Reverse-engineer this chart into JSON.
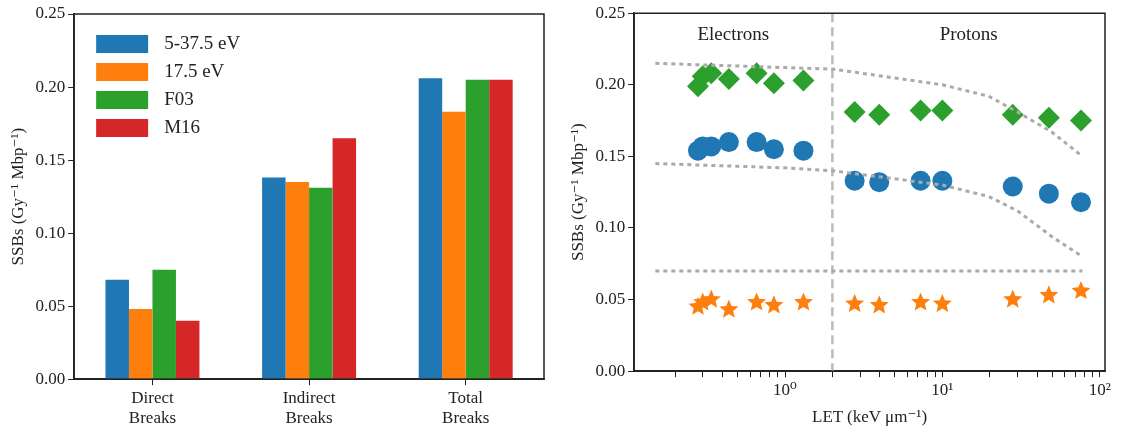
{
  "chart_data": [
    {
      "type": "bar",
      "ylabel": "SSBs (Gy⁻¹ Mbp⁻¹)",
      "categories": [
        "Direct Breaks",
        "Indirect Breaks",
        "Total Breaks"
      ],
      "series": [
        {
          "name": "5-37.5 eV",
          "color": "#1f77b4",
          "values": [
            0.068,
            0.138,
            0.206
          ]
        },
        {
          "name": "17.5 eV",
          "color": "#ff7f0e",
          "values": [
            0.048,
            0.135,
            0.183
          ]
        },
        {
          "name": "F03",
          "color": "#2ca02c",
          "values": [
            0.075,
            0.131,
            0.205
          ]
        },
        {
          "name": "M16",
          "color": "#d62728",
          "values": [
            0.04,
            0.165,
            0.205
          ]
        }
      ],
      "ylim": [
        0,
        0.25
      ],
      "yticks": [
        {
          "value": 0,
          "label": "0.00"
        },
        {
          "value": 0.05,
          "label": "0.05"
        },
        {
          "value": 0.1,
          "label": "0.10"
        },
        {
          "value": 0.15,
          "label": "0.15"
        },
        {
          "value": 0.2,
          "label": "0.20"
        },
        {
          "value": 0.25,
          "label": "0.25"
        }
      ],
      "grid": false,
      "legend": "top left"
    },
    {
      "type": "scatter",
      "xlabel": "LET (keV μm⁻¹)",
      "ylabel": "SSBs (Gy⁻¹ Mbp⁻¹)",
      "log": "x",
      "x": [
        0.28,
        0.3,
        0.34,
        0.44,
        0.66,
        0.85,
        1.31,
        2.77,
        3.97,
        7.27,
        10,
        28,
        47.5,
        76
      ],
      "series": [
        {
          "color": "#1f77b4",
          "marker": "circle",
          "values": [
            0.154,
            0.157,
            0.157,
            0.16,
            0.16,
            0.155,
            0.154,
            0.133,
            0.132,
            0.133,
            0.133,
            0.129,
            0.124,
            0.118
          ]
        },
        {
          "color": "#2ca02c",
          "marker": "diamond",
          "values": [
            0.199,
            0.206,
            0.208,
            0.204,
            0.208,
            0.201,
            0.203,
            0.181,
            0.179,
            0.182,
            0.182,
            0.179,
            0.177,
            0.175
          ]
        },
        {
          "color": "#ff7f0e",
          "marker": "star",
          "values": [
            0.045,
            0.048,
            0.05,
            0.043,
            0.048,
            0.046,
            0.048,
            0.047,
            0.046,
            0.048,
            0.047,
            0.05,
            0.053,
            0.056
          ]
        },
        {
          "type": "line",
          "color": "#aaaaaa",
          "line_style": "dotted",
          "marker": "none",
          "x": [
            0.15,
            1,
            2,
            10,
            19.7,
            30,
            49.6,
            77.6
          ],
          "values": [
            0.215,
            0.212,
            0.211,
            0.2,
            0.192,
            0.181,
            0.167,
            0.15
          ]
        },
        {
          "type": "line",
          "color": "#aaaaaa",
          "line_style": "dotted",
          "marker": "none",
          "x": [
            0.15,
            1,
            2,
            10,
            19.7,
            30,
            49.6,
            77.6
          ],
          "values": [
            0.145,
            0.142,
            0.14,
            0.13,
            0.122,
            0.112,
            0.094,
            0.08
          ]
        },
        {
          "type": "line",
          "color": "#aaaaaa",
          "line_style": "dotted",
          "marker": "none",
          "x": [
            0.15,
            77.6
          ],
          "values": [
            0.07,
            0.07
          ]
        }
      ],
      "ref_lines": [
        {
          "axis": "x",
          "value": 2,
          "color": "#bbbbbb",
          "line_style": "dashed"
        }
      ],
      "annotations": [
        "Electrons",
        "Protons"
      ],
      "xlim": [
        0.11,
        108
      ],
      "xticks": [
        {
          "value": 0.2,
          "label": null
        },
        {
          "value": 0.3,
          "label": null
        },
        {
          "value": 0.4,
          "label": null
        },
        {
          "value": 0.5,
          "label": null
        },
        {
          "value": 0.6,
          "label": null
        },
        {
          "value": 0.7,
          "label": null
        },
        {
          "value": 0.8,
          "label": null
        },
        {
          "value": 0.9,
          "label": null
        },
        {
          "value": 1,
          "label": "10⁰"
        },
        {
          "value": 2,
          "label": null
        },
        {
          "value": 3,
          "label": null
        },
        {
          "value": 4,
          "label": null
        },
        {
          "value": 5,
          "label": null
        },
        {
          "value": 6,
          "label": null
        },
        {
          "value": 7,
          "label": null
        },
        {
          "value": 8,
          "label": null
        },
        {
          "value": 9,
          "label": null
        },
        {
          "value": 10,
          "label": "10¹"
        },
        {
          "value": 20,
          "label": null
        },
        {
          "value": 30,
          "label": null
        },
        {
          "value": 40,
          "label": null
        },
        {
          "value": 50,
          "label": null
        },
        {
          "value": 60,
          "label": null
        },
        {
          "value": 70,
          "label": null
        },
        {
          "value": 80,
          "label": null
        },
        {
          "value": 90,
          "label": null
        },
        {
          "value": 100,
          "label": "10²"
        }
      ],
      "ylim": [
        0,
        0.25
      ],
      "yticks": [
        {
          "value": 0,
          "label": "0.00"
        },
        {
          "value": 0.05,
          "label": "0.05"
        },
        {
          "value": 0.1,
          "label": "0.10"
        },
        {
          "value": 0.15,
          "label": "0.15"
        },
        {
          "value": 0.2,
          "label": "0.20"
        },
        {
          "value": 0.25,
          "label": "0.25"
        }
      ],
      "grid": false
    }
  ]
}
